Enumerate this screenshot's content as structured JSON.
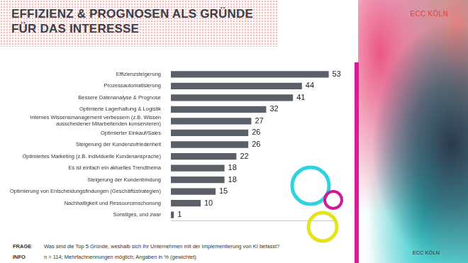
{
  "header": {
    "title": "EFFIZIENZ & PROGNOSEN ALS GRÜNDE FÜR DAS INTERESSE",
    "brand": "ECC KÖLN"
  },
  "chart_data": {
    "type": "bar",
    "orientation": "horizontal",
    "categories": [
      "Effizienzsteigerung",
      "Prozessautomatisierung",
      "Bessere Datenanalyse & Prognose",
      "Optimierte Lagerhaltung & Logistik",
      "Internes Wissensmanagement verbessern (z.B. Wissen ausscheidener Mitarbeitenden konservieren)",
      "Optimierter Einkauf/Sales",
      "Steigerung der Kundenzufriedenheit",
      "Optimiertes Marketing (z.B. individuelle Kundenansprache)",
      "Es ist einfach ein aktuelles Trendthema",
      "Steigerung der Kundenbindung",
      "Optimierung von Entscheidungsfindungen (Geschäftsstrategien)",
      "Nachhaltigkeit und Ressourcenschonung",
      "Sonstiges, und zwar"
    ],
    "values": [
      53,
      44,
      41,
      32,
      27,
      26,
      26,
      22,
      18,
      18,
      15,
      10,
      1
    ],
    "color": "#5b5f68",
    "xlim": [
      0,
      55
    ],
    "grid": false,
    "data_labels": true,
    "tick_labels": "y"
  },
  "footer": {
    "question_label": "FRAGE",
    "question": "Was sind die Top 5 Gründe, weshalb sich Ihr Unternehmen mit der Implementierung von KI befasst?",
    "info_label": "INFO",
    "info": "n = 114; Mehrfachnennungen möglich; Angaben in % (gewichtet)",
    "brand": "ECC KÖLN"
  }
}
